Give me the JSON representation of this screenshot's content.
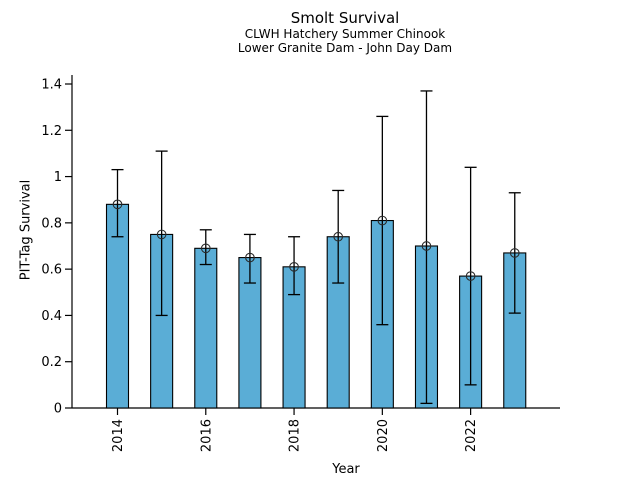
{
  "chart_data": {
    "type": "bar",
    "title": "Smolt Survival",
    "subtitle_line1": "CLWH Hatchery Summer Chinook",
    "subtitle_line2": "Lower Granite Dam - John Day Dam",
    "xlabel": "Year",
    "ylabel": "PIT-Tag Survival",
    "categories": [
      "2014",
      "2015",
      "2016",
      "2017",
      "2018",
      "2019",
      "2020",
      "2021",
      "2022",
      "2023"
    ],
    "values": [
      0.88,
      0.75,
      0.69,
      0.65,
      0.61,
      0.74,
      0.81,
      0.7,
      0.57,
      0.67
    ],
    "error_low": [
      0.74,
      0.4,
      0.62,
      0.54,
      0.49,
      0.54,
      0.36,
      0.02,
      0.1,
      0.41
    ],
    "error_high": [
      1.03,
      1.11,
      0.77,
      0.75,
      0.74,
      0.94,
      1.26,
      1.37,
      1.04,
      0.93
    ],
    "ylim": [
      0,
      1.4
    ],
    "ytick_values": [
      0,
      0.2,
      0.4,
      0.6,
      0.8,
      1.0,
      1.2,
      1.4
    ],
    "ytick_labels": [
      "0",
      "0.2",
      "0.4",
      "0.6",
      "0.8",
      "1",
      "1.2",
      "1.4"
    ],
    "xtick_labels": [
      "2014",
      "2016",
      "2018",
      "2020",
      "2022"
    ],
    "grid": false,
    "legend": "none",
    "marker": "open-circle",
    "error_bars": "vertical-with-caps",
    "colors": {
      "bar_fill": "#5AADD6",
      "bar_edge": "#000000",
      "error_bar": "#000000",
      "marker_edge": "#2a2a2a",
      "axis": "#000000",
      "text": "#000000",
      "background": "#FFFFFF"
    }
  }
}
